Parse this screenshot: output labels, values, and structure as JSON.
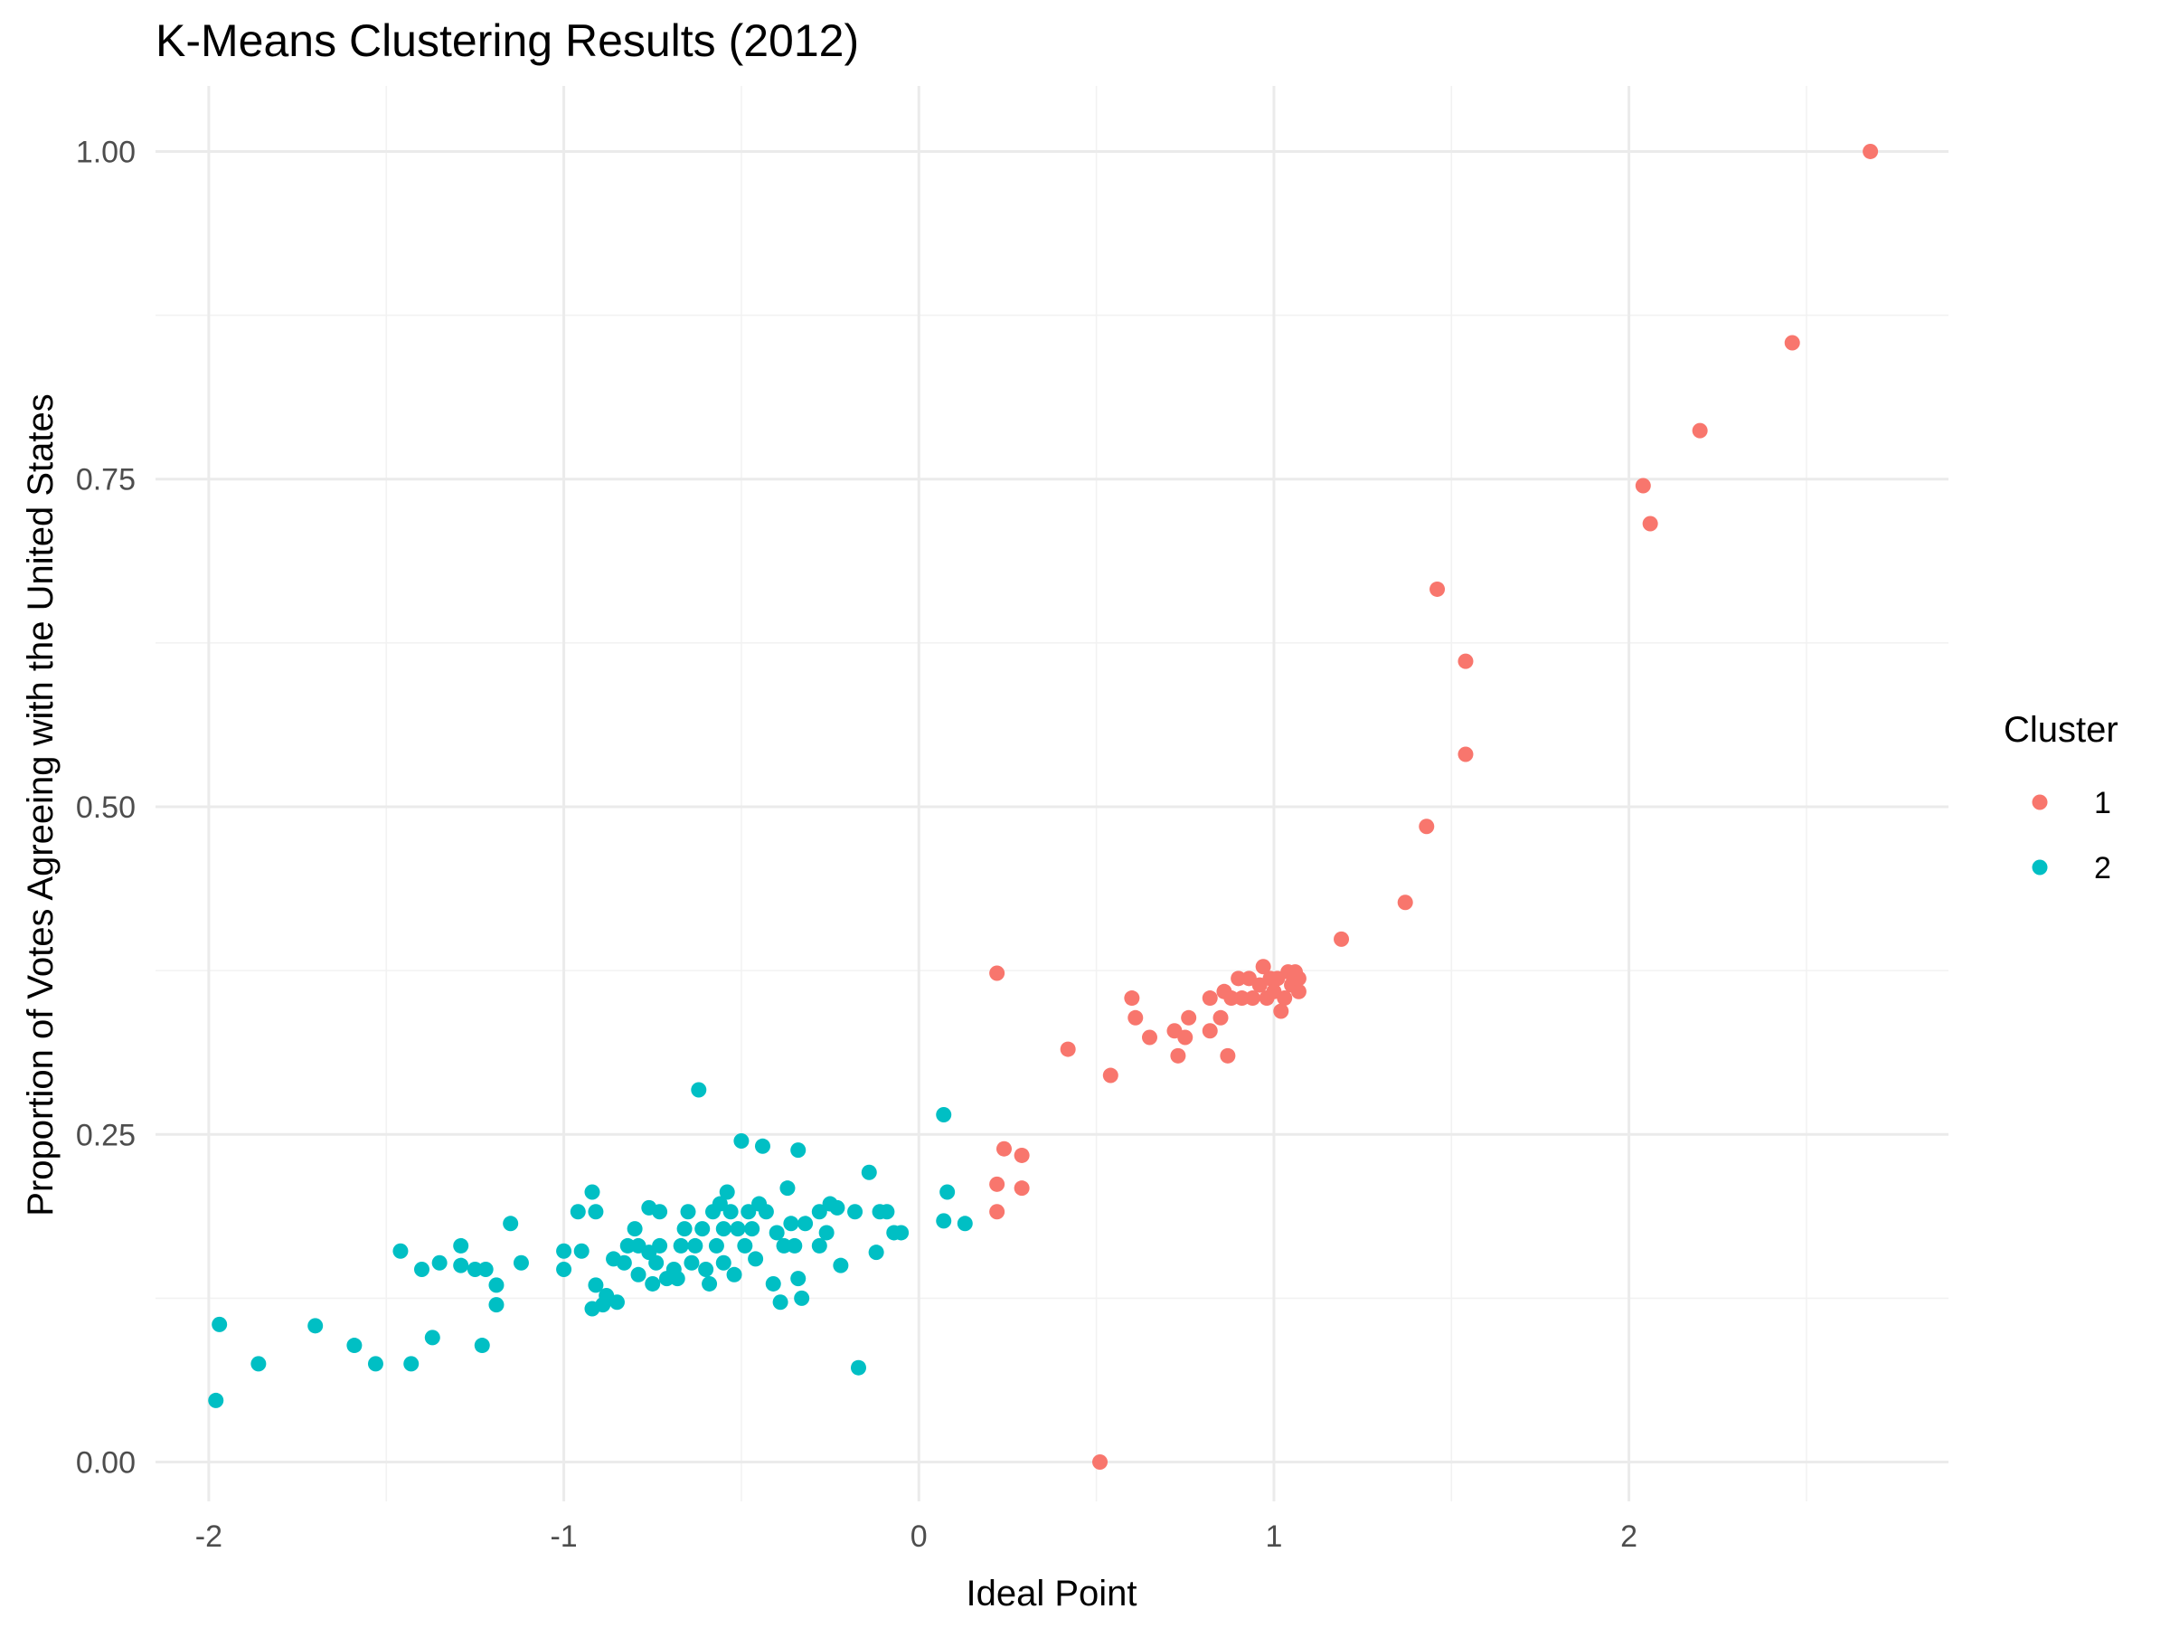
{
  "chart_data": {
    "type": "scatter",
    "title": "K-Means Clustering Results (2012)",
    "xlabel": "Ideal Point",
    "ylabel": "Proportion of Votes Agreeing with the United States",
    "xlim": [
      -2.15,
      2.9
    ],
    "ylim": [
      -0.03,
      1.05
    ],
    "x_ticks": [
      -2,
      -1,
      0,
      1,
      2
    ],
    "x_tick_labels": [
      "-2",
      "-1",
      "0",
      "1",
      "2"
    ],
    "y_ticks": [
      0,
      0.25,
      0.5,
      0.75,
      1.0
    ],
    "y_tick_labels": [
      "0.00",
      "0.25",
      "0.50",
      "0.75",
      "1.00"
    ],
    "grid": true,
    "legend": {
      "title": "Cluster",
      "position": "right"
    },
    "series": [
      {
        "name": "1",
        "color": "#F8766D",
        "points": [
          [
            2.68,
            1.0
          ],
          [
            2.46,
            0.854
          ],
          [
            2.2,
            0.787
          ],
          [
            2.04,
            0.745
          ],
          [
            2.06,
            0.716
          ],
          [
            1.46,
            0.666
          ],
          [
            1.54,
            0.611
          ],
          [
            1.54,
            0.54
          ],
          [
            1.43,
            0.485
          ],
          [
            1.37,
            0.427
          ],
          [
            1.19,
            0.399
          ],
          [
            0.22,
            0.373
          ],
          [
            0.42,
            0.315
          ],
          [
            0.54,
            0.295
          ],
          [
            0.6,
            0.354
          ],
          [
            0.61,
            0.339
          ],
          [
            0.65,
            0.324
          ],
          [
            0.72,
            0.329
          ],
          [
            0.73,
            0.31
          ],
          [
            0.75,
            0.324
          ],
          [
            0.76,
            0.339
          ],
          [
            0.82,
            0.354
          ],
          [
            0.82,
            0.329
          ],
          [
            0.85,
            0.339
          ],
          [
            0.86,
            0.359
          ],
          [
            0.87,
            0.31
          ],
          [
            0.88,
            0.354
          ],
          [
            0.9,
            0.369
          ],
          [
            0.91,
            0.354
          ],
          [
            0.93,
            0.369
          ],
          [
            0.94,
            0.354
          ],
          [
            0.96,
            0.364
          ],
          [
            0.97,
            0.378
          ],
          [
            0.98,
            0.354
          ],
          [
            0.99,
            0.369
          ],
          [
            1.0,
            0.359
          ],
          [
            1.01,
            0.369
          ],
          [
            1.02,
            0.344
          ],
          [
            1.03,
            0.354
          ],
          [
            1.04,
            0.374
          ],
          [
            1.05,
            0.364
          ],
          [
            1.06,
            0.374
          ],
          [
            1.07,
            0.359
          ],
          [
            1.07,
            0.369
          ],
          [
            0.24,
            0.239
          ],
          [
            0.29,
            0.234
          ],
          [
            0.22,
            0.212
          ],
          [
            0.29,
            0.209
          ],
          [
            0.22,
            0.191
          ],
          [
            0.51,
            0.0
          ]
        ]
      },
      {
        "name": "2",
        "color": "#00BFC4",
        "points": [
          [
            -1.97,
            0.105
          ],
          [
            -1.98,
            0.047
          ],
          [
            -1.86,
            0.075
          ],
          [
            -1.7,
            0.104
          ],
          [
            -1.59,
            0.089
          ],
          [
            -1.53,
            0.075
          ],
          [
            -1.43,
            0.075
          ],
          [
            -1.37,
            0.095
          ],
          [
            -1.46,
            0.161
          ],
          [
            -1.4,
            0.147
          ],
          [
            -1.35,
            0.152
          ],
          [
            -1.29,
            0.165
          ],
          [
            -1.29,
            0.15
          ],
          [
            -1.25,
            0.147
          ],
          [
            -1.22,
            0.147
          ],
          [
            -1.23,
            0.089
          ],
          [
            -1.19,
            0.135
          ],
          [
            -1.19,
            0.12
          ],
          [
            -1.15,
            0.182
          ],
          [
            -1.12,
            0.152
          ],
          [
            -1.0,
            0.161
          ],
          [
            -1.0,
            0.147
          ],
          [
            -0.96,
            0.191
          ],
          [
            -0.95,
            0.161
          ],
          [
            -0.92,
            0.206
          ],
          [
            -0.91,
            0.191
          ],
          [
            -0.91,
            0.135
          ],
          [
            -0.92,
            0.117
          ],
          [
            -0.89,
            0.12
          ],
          [
            -0.88,
            0.127
          ],
          [
            -0.86,
            0.155
          ],
          [
            -0.85,
            0.122
          ],
          [
            -0.83,
            0.152
          ],
          [
            -0.82,
            0.165
          ],
          [
            -0.8,
            0.178
          ],
          [
            -0.79,
            0.165
          ],
          [
            -0.79,
            0.143
          ],
          [
            -0.76,
            0.194
          ],
          [
            -0.76,
            0.16
          ],
          [
            -0.75,
            0.136
          ],
          [
            -0.74,
            0.152
          ],
          [
            -0.73,
            0.165
          ],
          [
            -0.73,
            0.191
          ],
          [
            -0.71,
            0.14
          ],
          [
            -0.69,
            0.147
          ],
          [
            -0.68,
            0.14
          ],
          [
            -0.67,
            0.165
          ],
          [
            -0.66,
            0.178
          ],
          [
            -0.65,
            0.191
          ],
          [
            -0.64,
            0.152
          ],
          [
            -0.63,
            0.165
          ],
          [
            -0.62,
            0.284
          ],
          [
            -0.61,
            0.178
          ],
          [
            -0.6,
            0.147
          ],
          [
            -0.59,
            0.136
          ],
          [
            -0.58,
            0.191
          ],
          [
            -0.57,
            0.165
          ],
          [
            -0.56,
            0.197
          ],
          [
            -0.55,
            0.178
          ],
          [
            -0.55,
            0.152
          ],
          [
            -0.54,
            0.206
          ],
          [
            -0.53,
            0.191
          ],
          [
            -0.52,
            0.143
          ],
          [
            -0.51,
            0.178
          ],
          [
            -0.5,
            0.245
          ],
          [
            -0.49,
            0.165
          ],
          [
            -0.48,
            0.191
          ],
          [
            -0.47,
            0.178
          ],
          [
            -0.46,
            0.155
          ],
          [
            -0.45,
            0.197
          ],
          [
            -0.44,
            0.241
          ],
          [
            -0.43,
            0.191
          ],
          [
            -0.41,
            0.136
          ],
          [
            -0.4,
            0.175
          ],
          [
            -0.39,
            0.122
          ],
          [
            -0.38,
            0.165
          ],
          [
            -0.37,
            0.209
          ],
          [
            -0.36,
            0.182
          ],
          [
            -0.35,
            0.165
          ],
          [
            -0.34,
            0.238
          ],
          [
            -0.34,
            0.14
          ],
          [
            -0.33,
            0.125
          ],
          [
            -0.32,
            0.182
          ],
          [
            -0.28,
            0.191
          ],
          [
            -0.28,
            0.165
          ],
          [
            -0.26,
            0.175
          ],
          [
            -0.25,
            0.197
          ],
          [
            -0.23,
            0.194
          ],
          [
            -0.22,
            0.15
          ],
          [
            -0.18,
            0.191
          ],
          [
            -0.17,
            0.072
          ],
          [
            -0.14,
            0.221
          ],
          [
            -0.12,
            0.16
          ],
          [
            -0.11,
            0.191
          ],
          [
            -0.09,
            0.191
          ],
          [
            -0.07,
            0.175
          ],
          [
            -0.05,
            0.175
          ],
          [
            0.07,
            0.265
          ],
          [
            0.08,
            0.206
          ],
          [
            0.07,
            0.184
          ],
          [
            0.13,
            0.182
          ]
        ]
      }
    ]
  }
}
